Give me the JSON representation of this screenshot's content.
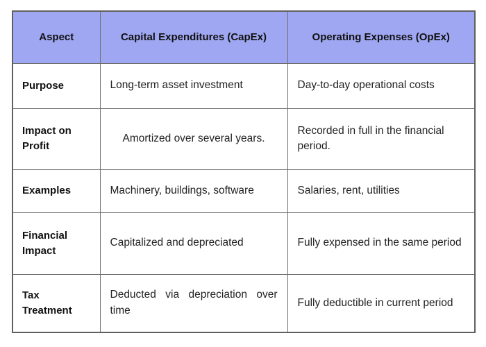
{
  "table": {
    "headers": {
      "aspect": "Aspect",
      "capex": "Capital Expenditures (CapEx)",
      "opex": "Operating Expenses (OpEx)"
    },
    "rows": [
      {
        "aspect": "Purpose",
        "capex": "Long-term asset investment",
        "opex": "Day-to-day operational costs"
      },
      {
        "aspect": "Impact on Profit",
        "capex": "Amortized over several years.",
        "opex": "Recorded in full in the financial period."
      },
      {
        "aspect": "Examples",
        "capex": "Machinery, buildings, software",
        "opex": "Salaries, rent, utilities"
      },
      {
        "aspect": "Financial Impact",
        "capex": "Capitalized and depreciated",
        "opex": "Fully expensed in the same period"
      },
      {
        "aspect": "Tax Treatment",
        "capex": "Deducted via depreciation over time",
        "opex": "Fully deductible in current period"
      }
    ],
    "colors": {
      "header_bg": "#9fa7f2",
      "border": "#6f6f6f",
      "text": "#1a1a1a",
      "background": "#ffffff"
    }
  }
}
